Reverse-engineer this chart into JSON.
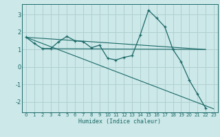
{
  "xlabel": "Humidex (Indice chaleur)",
  "bg_color": "#cce8e8",
  "grid_color": "#b0d0d0",
  "line_color": "#1a6868",
  "xlim": [
    -0.5,
    23.5
  ],
  "ylim": [
    -2.6,
    3.6
  ],
  "xticks": [
    0,
    1,
    2,
    3,
    4,
    5,
    6,
    7,
    8,
    9,
    10,
    11,
    12,
    13,
    14,
    15,
    16,
    17,
    18,
    19,
    20,
    21,
    22,
    23
  ],
  "yticks": [
    -2,
    -1,
    0,
    1,
    2,
    3
  ],
  "series1_x": [
    0,
    1,
    2,
    3,
    4,
    5,
    6,
    7,
    8,
    9,
    10,
    11,
    12,
    13,
    14,
    15,
    16,
    17,
    18,
    19,
    20,
    21,
    22
  ],
  "series1_y": [
    1.7,
    1.35,
    1.05,
    1.05,
    1.45,
    1.75,
    1.5,
    1.45,
    1.1,
    1.25,
    0.5,
    0.4,
    0.55,
    0.65,
    1.85,
    3.25,
    2.8,
    2.3,
    1.0,
    0.3,
    -0.75,
    -1.55,
    -2.35
  ],
  "line1_x": [
    0,
    22
  ],
  "line1_y": [
    1.7,
    1.0
  ],
  "line2_x": [
    0,
    23
  ],
  "line2_y": [
    1.7,
    -2.4
  ],
  "line3_x": [
    2,
    22
  ],
  "line3_y": [
    1.05,
    1.0
  ]
}
